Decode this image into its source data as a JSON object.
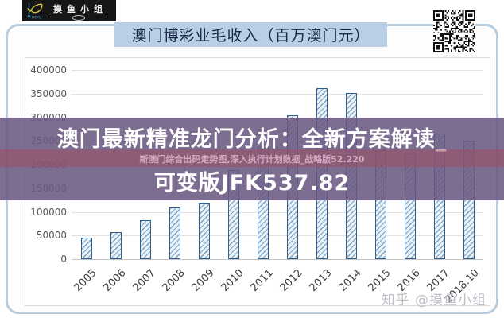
{
  "logo": {
    "brand": "摸鱼小组",
    "sub": "MOYU"
  },
  "header": {
    "chart_title": "澳门博彩业毛收入（百万澳门元）"
  },
  "chart_data": {
    "type": "bar",
    "title": "澳门博彩业毛收入（百万澳门元）",
    "categories": [
      "2005",
      "2006",
      "2007",
      "2008",
      "2009",
      "2010",
      "2011",
      "2012",
      "2013",
      "2014",
      "2015",
      "2016",
      "2017",
      "2018.10"
    ],
    "values": [
      45800,
      56600,
      83000,
      108700,
      119400,
      188300,
      267900,
      304100,
      360700,
      351500,
      230800,
      223200,
      265700,
      251000
    ],
    "xlabel": "",
    "ylabel": "",
    "ylim": [
      0,
      400000
    ],
    "ytick_step": 50000,
    "grid": true,
    "legend": "none",
    "bar_style": "diagonal-hatch"
  },
  "overlay": {
    "line1": "澳门最新精准龙门分析：全新方案解读_",
    "stripe_text": "新澳门综合出码走势图,深入执行计划数据_战略版52.220",
    "line2": "可变版JFK537.82"
  },
  "watermark": "知乎 @摸鱼小组",
  "colors": {
    "title_bar_bg": "#b9cfe6",
    "title_text": "#182743",
    "card_border": "#b7cde0",
    "bar_border": "#2e5f8e",
    "bar_hatch": "#3d709b",
    "banner_bg": "#6a5982",
    "banner_stripe": "#9e4f62",
    "logo_bg": "#161616",
    "logo_fish": "#d9c945",
    "logo_accent": "#58b7d8",
    "watermark_text": "#bdc1c7"
  }
}
